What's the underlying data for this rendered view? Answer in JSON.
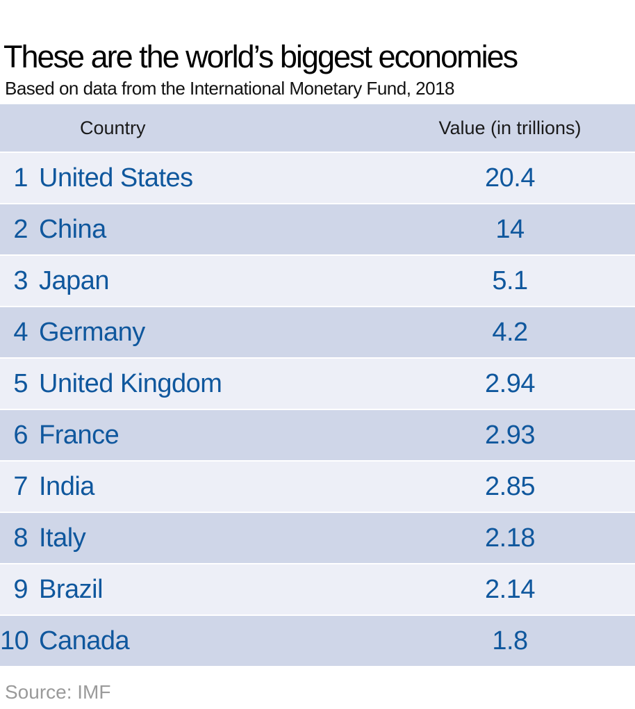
{
  "title": "These are the world’s biggest economies",
  "subtitle": "Based on data from the International Monetary Fund, 2018",
  "source": "Source: IMF",
  "table": {
    "columns": [
      "Country",
      "Value (in trillions)"
    ],
    "rows": [
      {
        "rank": "1",
        "country": "United States",
        "value": "20.4"
      },
      {
        "rank": "2",
        "country": "China",
        "value": "14"
      },
      {
        "rank": "3",
        "country": "Japan",
        "value": "5.1"
      },
      {
        "rank": "4",
        "country": "Germany",
        "value": "4.2"
      },
      {
        "rank": "5",
        "country": "United Kingdom",
        "value": "2.94"
      },
      {
        "rank": "6",
        "country": "France",
        "value": "2.93"
      },
      {
        "rank": "7",
        "country": "India",
        "value": "2.85"
      },
      {
        "rank": "8",
        "country": "Italy",
        "value": "2.18"
      },
      {
        "rank": "9",
        "country": "Brazil",
        "value": "2.14"
      },
      {
        "rank": "10",
        "country": "Canada",
        "value": "1.8"
      }
    ]
  },
  "colors": {
    "row_text": "#0f579d",
    "header_bg": "#cfd6e8",
    "row_light_bg": "#edeff7",
    "row_dark_bg": "#cfd6e8",
    "divider": "#ffffff",
    "source_text": "#9a9a9a",
    "title_text": "#000000"
  },
  "chart_data": {
    "type": "table",
    "title": "These are the world’s biggest economies",
    "subtitle": "Based on data from the International Monetary Fund, 2018",
    "columns": [
      "Country",
      "Value (in trillions)"
    ],
    "categories": [
      "United States",
      "China",
      "Japan",
      "Germany",
      "United Kingdom",
      "France",
      "India",
      "Italy",
      "Brazil",
      "Canada"
    ],
    "values": [
      20.4,
      14,
      5.1,
      4.2,
      2.94,
      2.93,
      2.85,
      2.18,
      2.14,
      1.8
    ],
    "source": "Source: IMF",
    "legend_position": "none",
    "grid": false
  }
}
